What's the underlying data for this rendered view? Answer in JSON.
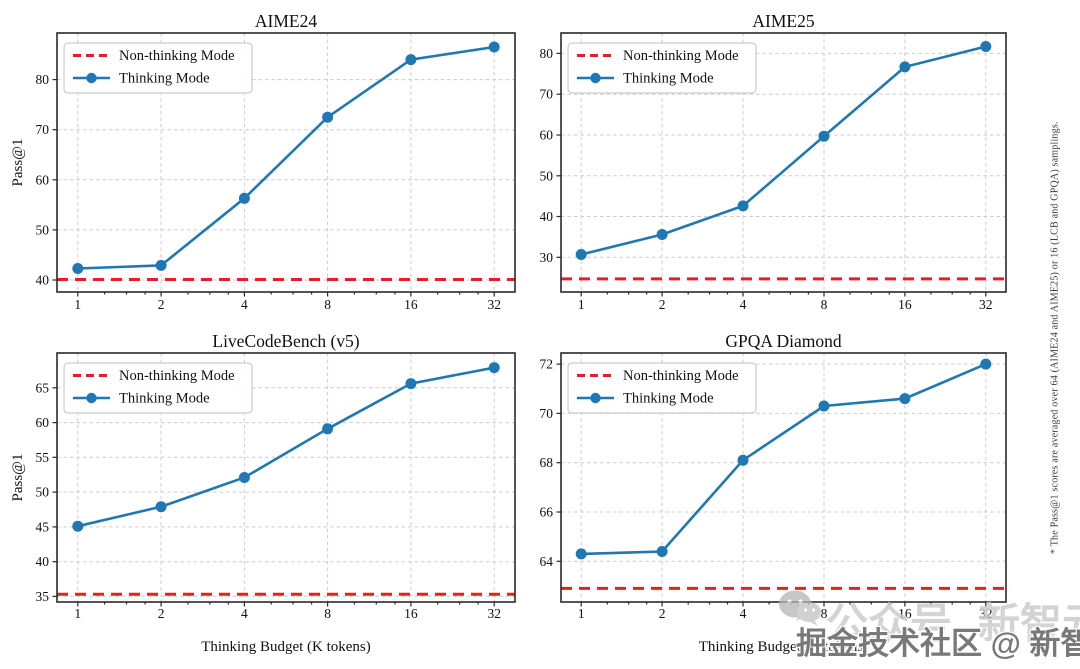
{
  "figure": {
    "background": "#ffffff",
    "xlabel": "Thinking Budget (K tokens)",
    "ylabel": "Pass@1"
  },
  "colors": {
    "thinking_line": "#1f77b4",
    "nonthinking_line": "#e62020",
    "grid": "#cccccc",
    "axis": "#2a2a2a",
    "text": "#111111"
  },
  "legend": {
    "nonthinking_label": "Non-thinking Mode",
    "thinking_label": "Thinking Mode",
    "position": "upper left"
  },
  "side_note": "* The Pass@1 scores are averaged over 64 (AIME24 and AIME25) or 16 (LCB and GPQA) samplings.",
  "watermark": {
    "icon": "wechat-icon",
    "faint_text_1": "公众号",
    "faint_text_2": "新智元",
    "main_text": "掘金技术社区 @ 新智元"
  },
  "chart_data": [
    {
      "type": "line",
      "title": "AIME24",
      "xlabel": "",
      "ylabel": "Pass@1",
      "xscale": "log2",
      "x": [
        1,
        2,
        4,
        8,
        16,
        32
      ],
      "xtick_labels": [
        "1",
        "2",
        "4",
        "8",
        "16",
        "32"
      ],
      "series": [
        {
          "name": "Non-thinking Mode",
          "style": "hline",
          "value": 40.1
        },
        {
          "name": "Thinking Mode",
          "style": "line-marker",
          "values": [
            42.3,
            42.9,
            56.3,
            72.5,
            84.0,
            86.5
          ]
        }
      ],
      "yticks": [
        40,
        50,
        60,
        70,
        80
      ],
      "ylim": [
        37.6,
        89.3
      ],
      "grid": true,
      "legend_position": "upper left"
    },
    {
      "type": "line",
      "title": "AIME25",
      "xlabel": "",
      "ylabel": "",
      "xscale": "log2",
      "x": [
        1,
        2,
        4,
        8,
        16,
        32
      ],
      "xtick_labels": [
        "1",
        "2",
        "4",
        "8",
        "16",
        "32"
      ],
      "series": [
        {
          "name": "Non-thinking Mode",
          "style": "hline",
          "value": 24.7
        },
        {
          "name": "Thinking Mode",
          "style": "line-marker",
          "values": [
            30.7,
            35.6,
            42.6,
            59.7,
            76.7,
            81.7
          ]
        }
      ],
      "yticks": [
        30,
        40,
        50,
        60,
        70,
        80
      ],
      "ylim": [
        21.5,
        85.0
      ],
      "grid": true,
      "legend_position": "upper left"
    },
    {
      "type": "line",
      "title": "LiveCodeBench (v5)",
      "xlabel": "Thinking Budget (K tokens)",
      "ylabel": "Pass@1",
      "xscale": "log2",
      "x": [
        1,
        2,
        4,
        8,
        16,
        32
      ],
      "xtick_labels": [
        "1",
        "2",
        "4",
        "8",
        "16",
        "32"
      ],
      "series": [
        {
          "name": "Non-thinking Mode",
          "style": "hline",
          "value": 35.3
        },
        {
          "name": "Thinking Mode",
          "style": "line-marker",
          "values": [
            45.1,
            47.9,
            52.1,
            59.1,
            65.6,
            67.9
          ]
        }
      ],
      "yticks": [
        35,
        40,
        45,
        50,
        55,
        60,
        65
      ],
      "ylim": [
        34.2,
        70.0
      ],
      "grid": true,
      "legend_position": "upper left"
    },
    {
      "type": "line",
      "title": "GPQA Diamond",
      "xlabel": "Thinking Budget (K tokens)",
      "ylabel": "",
      "xscale": "log2",
      "x": [
        1,
        2,
        4,
        8,
        16,
        32
      ],
      "xtick_labels": [
        "1",
        "2",
        "4",
        "8",
        "16",
        "32"
      ],
      "series": [
        {
          "name": "Non-thinking Mode",
          "style": "hline",
          "value": 62.9
        },
        {
          "name": "Thinking Mode",
          "style": "line-marker",
          "values": [
            64.3,
            64.4,
            68.1,
            70.3,
            70.6,
            72.0
          ]
        }
      ],
      "yticks": [
        64,
        66,
        68,
        70,
        72
      ],
      "ylim": [
        62.35,
        72.45
      ],
      "grid": true,
      "legend_position": "upper left"
    }
  ]
}
